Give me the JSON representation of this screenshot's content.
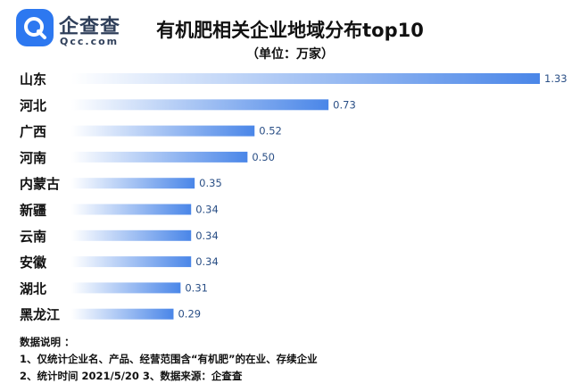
{
  "logo": {
    "name": "企查查",
    "domain": "Qcc.com",
    "icon": "q-logo-icon",
    "color": "#2d78f0"
  },
  "title": "有机肥相关企业地域分布top10",
  "subtitle": "（单位：万家）",
  "chart_data": {
    "type": "bar",
    "orientation": "horizontal",
    "categories": [
      "山东",
      "河北",
      "广西",
      "河南",
      "内蒙古",
      "新疆",
      "云南",
      "安徽",
      "湖北",
      "黑龙江"
    ],
    "values": [
      1.33,
      0.73,
      0.52,
      0.5,
      0.35,
      0.34,
      0.34,
      0.34,
      0.31,
      0.29
    ],
    "value_labels": [
      "1.33",
      "0.73",
      "0.52",
      "0.50",
      "0.35",
      "0.34",
      "0.34",
      "0.34",
      "0.31",
      "0.29"
    ],
    "xlim": [
      0,
      1.33
    ],
    "grid": false,
    "bar_gradient": [
      "#ffffff",
      "#4a86e8"
    ],
    "label_color": "#2a4f86"
  },
  "notes": {
    "heading": "数据说明 ：",
    "line1": "1、仅统计企业名、产品、经营范围含“有机肥”的在业、存续企业",
    "line2": "2、统计时间 2021/5/20    3、数据来源：企查查"
  }
}
